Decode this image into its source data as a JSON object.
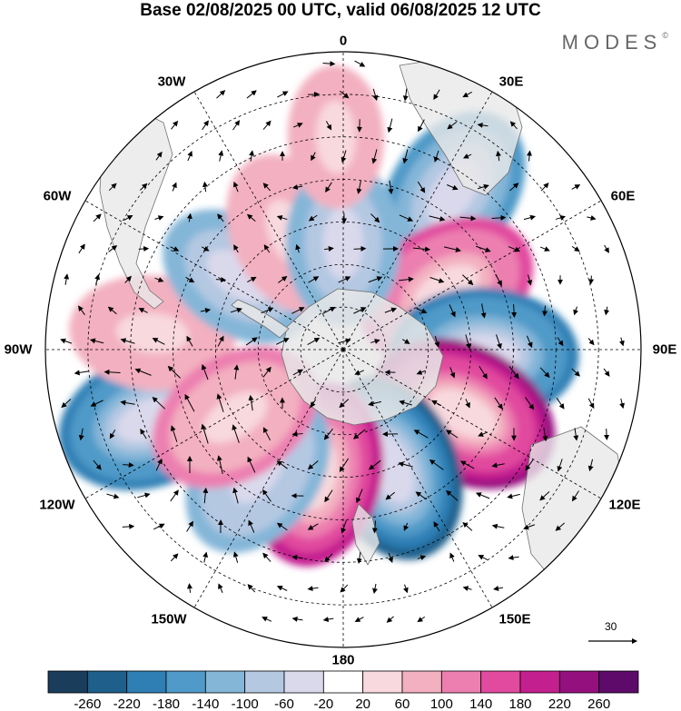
{
  "header": {
    "title": "Base 02/08/2025 00 UTC, valid 06/08/2025 12 UTC",
    "brand": "MODES",
    "brand_mark": "©"
  },
  "map": {
    "projection": "south-polar-stereographic",
    "longitude_labels": {
      "lon_0": "0",
      "lon_30e": "30E",
      "lon_60e": "60E",
      "lon_90e": "90E",
      "lon_120e": "120E",
      "lon_150e": "150E",
      "lon_180": "180",
      "lon_150w": "150W",
      "lon_120w": "120W",
      "lon_90w": "90W",
      "lon_60w": "60W",
      "lon_30w": "30W"
    },
    "vector_reference": {
      "value": "30"
    },
    "anomaly_centers": [
      {
        "name": "ne-negative",
        "lon": 35,
        "lat": -45,
        "value": -140
      },
      {
        "name": "east-positive",
        "lon": 60,
        "lat": -62,
        "value": 160
      },
      {
        "name": "east-negative",
        "lon": 92,
        "lat": -57,
        "value": -200
      },
      {
        "name": "se-positive",
        "lon": 118,
        "lat": -58,
        "value": 240
      },
      {
        "name": "south-negative",
        "lon": 158,
        "lat": -60,
        "value": -220
      },
      {
        "name": "south-positive",
        "lon": 192,
        "lat": -60,
        "value": 180
      },
      {
        "name": "west-negative",
        "lon": 250,
        "lat": -42,
        "value": -200
      },
      {
        "name": "west-positive",
        "lon": 275,
        "lat": -45,
        "value": 80
      },
      {
        "name": "sw-negative",
        "lon": 215,
        "lat": -55,
        "value": -120
      },
      {
        "name": "sw-positive",
        "lon": 238,
        "lat": -60,
        "value": 120
      },
      {
        "name": "nw-negative",
        "lon": 305,
        "lat": -60,
        "value": -100
      },
      {
        "name": "north-positive",
        "lon": 335,
        "lat": -60,
        "value": 80
      },
      {
        "name": "north-negative",
        "lon": 0,
        "lat": -65,
        "value": -100
      },
      {
        "name": "far-north-positive",
        "lon": 358,
        "lat": -40,
        "value": 60
      }
    ]
  },
  "colorbar": {
    "labels": [
      "-260",
      "-220",
      "-180",
      "-140",
      "-100",
      "-60",
      "-20",
      "20",
      "60",
      "100",
      "140",
      "180",
      "220",
      "260"
    ],
    "colors": [
      "#1a3d5c",
      "#1f5f8b",
      "#2f7fb5",
      "#4f9ac8",
      "#84b6d8",
      "#b4c8e2",
      "#dad9ec",
      "#ffffff",
      "#f8d9de",
      "#f3b0c0",
      "#ec7fb0",
      "#e14a9e",
      "#c41f8f",
      "#94107e",
      "#5e0a6a"
    ]
  },
  "colors": {
    "land": "#e8e8e8",
    "coast": "#707070",
    "grid": "#000000",
    "arrow": "#000000"
  }
}
